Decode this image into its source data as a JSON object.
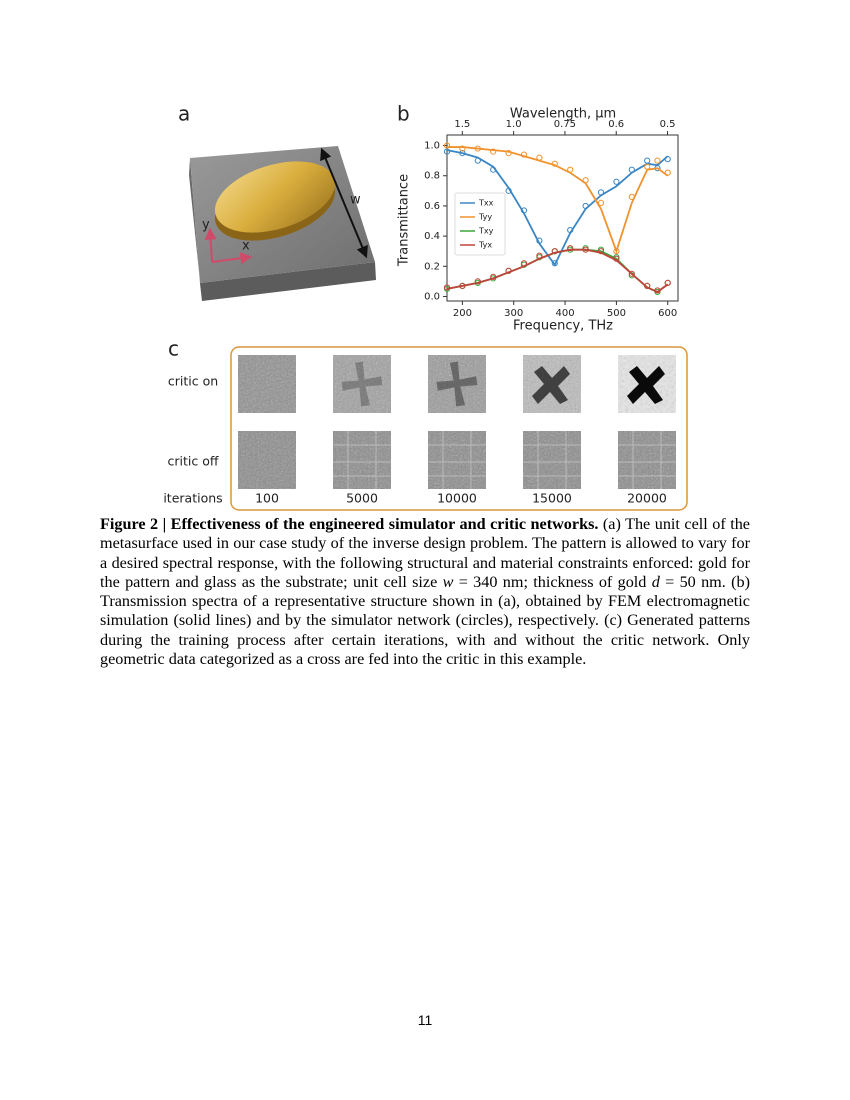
{
  "figure": {
    "panel_a": {
      "label": "a",
      "w_label": "w",
      "x_label": "x",
      "y_label": "y"
    },
    "panel_c": {
      "label": "c",
      "row_labels": [
        "critic on",
        "critic off",
        "iterations"
      ],
      "iterations": [
        "100",
        "5000",
        "10000",
        "15000",
        "20000"
      ]
    }
  },
  "chart_data": {
    "type": "line",
    "label": "b",
    "xlabel": "Frequency, THz",
    "ylabel": "Transmittance",
    "x2label": "Wavelength, μm",
    "x": [
      170,
      200,
      230,
      260,
      290,
      320,
      350,
      380,
      410,
      440,
      470,
      500,
      530,
      560,
      580,
      600
    ],
    "series": [
      {
        "name": "Txx",
        "color": "#3a86c4",
        "values": [
          0.97,
          0.95,
          0.92,
          0.86,
          0.72,
          0.55,
          0.35,
          0.21,
          0.42,
          0.58,
          0.67,
          0.73,
          0.82,
          0.88,
          0.87,
          0.93
        ],
        "simulator": [
          0.96,
          0.95,
          0.9,
          0.84,
          0.7,
          0.57,
          0.37,
          0.22,
          0.44,
          0.6,
          0.69,
          0.76,
          0.84,
          0.9,
          0.85,
          0.91
        ]
      },
      {
        "name": "Tyy",
        "color": "#f0922e",
        "values": [
          0.99,
          0.99,
          0.98,
          0.97,
          0.96,
          0.93,
          0.9,
          0.87,
          0.82,
          0.75,
          0.58,
          0.3,
          0.62,
          0.84,
          0.85,
          0.8
        ],
        "simulator": [
          1.0,
          0.98,
          0.98,
          0.96,
          0.95,
          0.94,
          0.92,
          0.88,
          0.84,
          0.77,
          0.62,
          0.3,
          0.66,
          0.86,
          0.9,
          0.82
        ]
      },
      {
        "name": "Txy",
        "color": "#3aa63a",
        "values": [
          0.05,
          0.07,
          0.09,
          0.12,
          0.16,
          0.2,
          0.25,
          0.29,
          0.31,
          0.31,
          0.3,
          0.25,
          0.15,
          0.06,
          0.03,
          0.08
        ],
        "simulator": [
          0.05,
          0.07,
          0.09,
          0.12,
          0.17,
          0.21,
          0.26,
          0.3,
          0.31,
          0.32,
          0.31,
          0.26,
          0.14,
          0.07,
          0.03,
          0.09
        ]
      },
      {
        "name": "Tyx",
        "color": "#c0443a",
        "values": [
          0.05,
          0.07,
          0.09,
          0.12,
          0.16,
          0.2,
          0.25,
          0.29,
          0.31,
          0.31,
          0.29,
          0.24,
          0.15,
          0.06,
          0.03,
          0.08
        ],
        "simulator": [
          0.06,
          0.07,
          0.1,
          0.13,
          0.17,
          0.22,
          0.27,
          0.3,
          0.32,
          0.31,
          0.3,
          0.25,
          0.15,
          0.07,
          0.04,
          0.09
        ]
      }
    ],
    "xlim": [
      170,
      620
    ],
    "ylim": [
      -0.03,
      1.07
    ],
    "xticks": [
      200,
      300,
      400,
      500,
      600
    ],
    "yticks": [
      {
        "value": 0,
        "label": "0.0"
      },
      0.2,
      0.4,
      0.6,
      0.8,
      {
        "value": 1,
        "label": "1.0"
      }
    ],
    "x2ticks": [
      1.5,
      {
        "value": 1,
        "label": "1.0"
      },
      0.75,
      0.6,
      0.5
    ],
    "legend": "left"
  },
  "caption": {
    "bold": "Figure 2 | Effectiveness of the engineered simulator and critic networks.",
    "t1": " (a) The unit cell of the metasurface used in our case study of the inverse design problem. The pattern is allowed to vary for a desired spectral response, with the following structural and material constraints enforced: gold for the pattern and glass as the substrate; unit cell size ",
    "i1": "w",
    "t2": " = 340 nm; thickness of gold ",
    "i2": "d",
    "t3": " = 50 nm. (b) Transmission spectra of a representative structure shown in (a), obtained by FEM electromagnetic simulation (solid lines) and by the simulator network (circles), respectively. (c) Generated patterns during the training process after certain iterations, with and without the critic network. Only geometric data categorized as a cross are fed into the critic in this example."
  },
  "page_number": "11"
}
